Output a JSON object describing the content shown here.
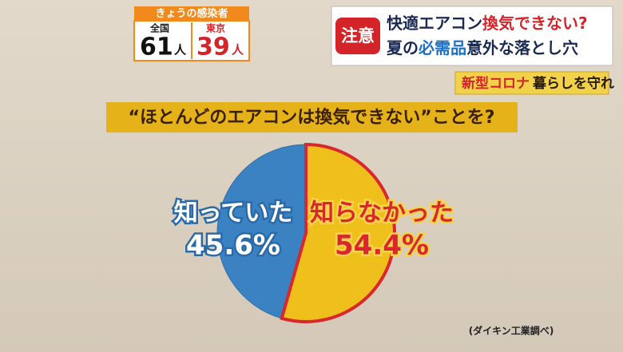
{
  "chart_data": {
    "type": "pie",
    "title": "“ほとんどのエアコンは換気できない”ことを?",
    "categories": [
      "知っていた",
      "知らなかった"
    ],
    "values": [
      45.6,
      54.4
    ],
    "value_labels": [
      "45.6%",
      "54.4%"
    ],
    "colors": [
      "#3a82c2",
      "#efbf1c"
    ],
    "note": "(ダイキン工業調べ)"
  },
  "overlay": {
    "cases": {
      "title": "きょうの感染者",
      "national_label": "全国",
      "national_count": 61,
      "unit": "人",
      "tokyo_label": "東京",
      "tokyo_count": 39
    },
    "headline": {
      "badge": "注意",
      "line1": [
        "快適エアコン",
        "換気できない?"
      ],
      "line2": [
        "夏の",
        "必需品",
        "意外な落とし穴"
      ]
    },
    "tag": [
      "新型コロナ",
      "暮らしを守れ"
    ]
  }
}
